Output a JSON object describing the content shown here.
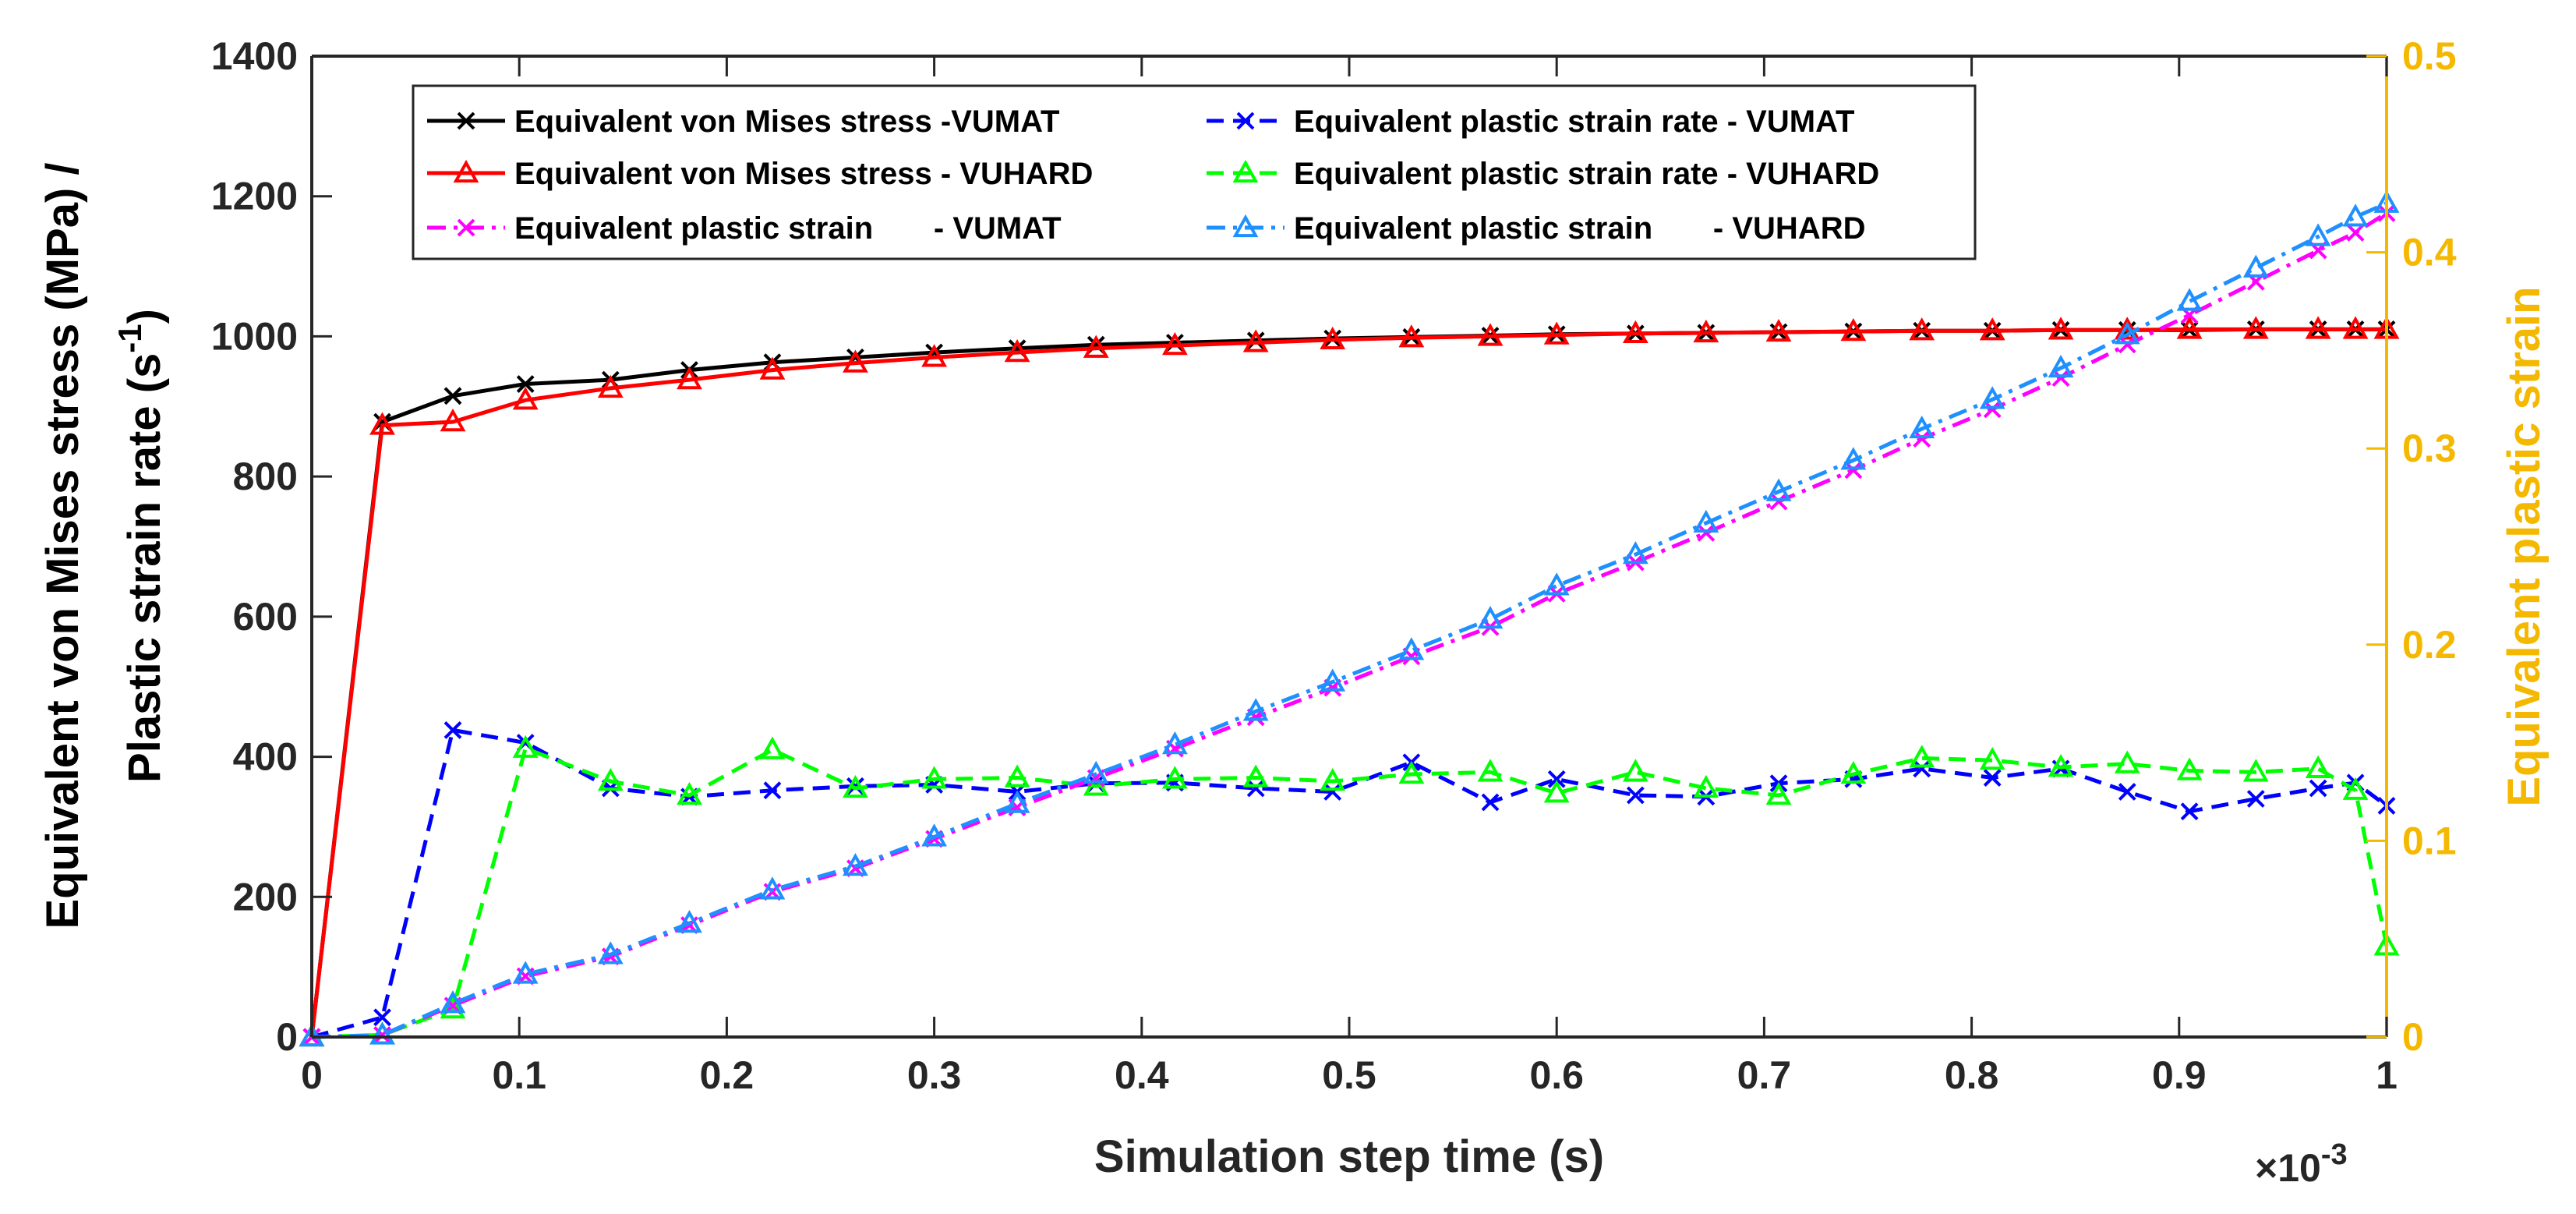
{
  "chart_data": {
    "type": "line",
    "xlabel": "Simulation step time (s)",
    "x_multiplier": "×10",
    "x_multiplier_exp": "-3",
    "ylabel_left_line1": "Equivalent von Mises stress (MPa) /",
    "ylabel_left_line2": "Plastic strain rate (s",
    "ylabel_left_exp": "-1",
    "ylabel_left_close": ")",
    "ylabel_right": "Equivalent plastic strain",
    "xlim": [
      0,
      1
    ],
    "ylim_left": [
      0,
      1400
    ],
    "ylim_right": [
      0,
      0.5
    ],
    "x_ticks": [
      "0",
      "0.1",
      "0.2",
      "0.3",
      "0.4",
      "0.5",
      "0.6",
      "0.7",
      "0.8",
      "0.9",
      "1"
    ],
    "y_left_ticks": [
      "0",
      "200",
      "400",
      "600",
      "800",
      "1000",
      "1200",
      "1400"
    ],
    "y_right_ticks": [
      "0",
      "0.1",
      "0.2",
      "0.3",
      "0.4",
      "0.5"
    ],
    "grid": false,
    "legend_placement": "top-center",
    "colors": {
      "right_axis": "#F5B800"
    },
    "series": [
      {
        "name": "Equivalent von Mises stress -VUMAT",
        "axis": "left",
        "color": "#000000",
        "dash": "solid",
        "marker": "x",
        "x": [
          0,
          0.034,
          0.068,
          0.103,
          0.144,
          0.182,
          0.222,
          0.262,
          0.3,
          0.34,
          0.378,
          0.416,
          0.455,
          0.492,
          0.53,
          0.568,
          0.6,
          0.638,
          0.672,
          0.707,
          0.743,
          0.776,
          0.81,
          0.843,
          0.875,
          0.905,
          0.937,
          0.967,
          0.985,
          1.0
        ],
        "y": [
          0,
          878,
          915,
          932,
          938,
          952,
          963,
          970,
          977,
          983,
          988,
          991,
          994,
          997,
          999,
          1001,
          1003,
          1004,
          1005,
          1006,
          1007,
          1008,
          1008,
          1009,
          1009,
          1009,
          1010,
          1010,
          1010,
          1010
        ]
      },
      {
        "name": "Equivalent von Mises stress - VUHARD",
        "axis": "left",
        "color": "#FF0000",
        "dash": "solid",
        "marker": "triangle",
        "x": [
          0,
          0.034,
          0.068,
          0.103,
          0.144,
          0.182,
          0.222,
          0.262,
          0.3,
          0.34,
          0.378,
          0.416,
          0.455,
          0.492,
          0.53,
          0.568,
          0.6,
          0.638,
          0.672,
          0.707,
          0.743,
          0.776,
          0.81,
          0.843,
          0.875,
          0.905,
          0.937,
          0.967,
          0.985,
          1.0
        ],
        "y": [
          0,
          873,
          878,
          909,
          926,
          938,
          952,
          962,
          970,
          977,
          983,
          987,
          991,
          995,
          998,
          1000,
          1002,
          1004,
          1005,
          1006,
          1007,
          1008,
          1008,
          1009,
          1009,
          1010,
          1010,
          1010,
          1010,
          1010
        ]
      },
      {
        "name": "Equivalent plastic strain rate - VUMAT",
        "axis": "left",
        "color": "#0000FF",
        "dash": "dashed",
        "marker": "x",
        "x": [
          0,
          0.034,
          0.068,
          0.103,
          0.144,
          0.182,
          0.222,
          0.262,
          0.3,
          0.34,
          0.378,
          0.416,
          0.455,
          0.492,
          0.53,
          0.568,
          0.6,
          0.638,
          0.672,
          0.707,
          0.743,
          0.776,
          0.81,
          0.843,
          0.875,
          0.905,
          0.937,
          0.967,
          0.985,
          1.0
        ],
        "y": [
          0,
          28,
          438,
          420,
          355,
          343,
          352,
          358,
          360,
          350,
          362,
          363,
          355,
          350,
          392,
          335,
          368,
          345,
          343,
          362,
          368,
          383,
          370,
          383,
          350,
          322,
          340,
          355,
          363,
          330
        ]
      },
      {
        "name": "Equivalent plastic strain rate - VUHARD",
        "axis": "left",
        "color": "#00FF00",
        "dash": "dashed",
        "marker": "triangle",
        "x": [
          0,
          0.034,
          0.068,
          0.103,
          0.144,
          0.182,
          0.222,
          0.262,
          0.3,
          0.34,
          0.378,
          0.416,
          0.455,
          0.492,
          0.53,
          0.568,
          0.6,
          0.638,
          0.672,
          0.707,
          0.743,
          0.776,
          0.81,
          0.843,
          0.875,
          0.905,
          0.937,
          0.967,
          0.985,
          1.0
        ],
        "y": [
          0,
          3,
          40,
          412,
          365,
          345,
          410,
          355,
          368,
          370,
          358,
          368,
          370,
          365,
          375,
          378,
          348,
          378,
          355,
          345,
          375,
          398,
          395,
          385,
          390,
          380,
          378,
          383,
          352,
          130
        ]
      },
      {
        "name": "Equivalent plastic strain       - VUMAT",
        "axis": "right",
        "color": "#FF00FF",
        "dash": "dashdot",
        "marker": "x",
        "x": [
          0,
          0.034,
          0.068,
          0.103,
          0.144,
          0.182,
          0.222,
          0.262,
          0.3,
          0.34,
          0.378,
          0.416,
          0.455,
          0.492,
          0.53,
          0.568,
          0.6,
          0.638,
          0.672,
          0.707,
          0.743,
          0.776,
          0.81,
          0.843,
          0.875,
          0.905,
          0.937,
          0.967,
          0.985,
          1.0
        ],
        "y": [
          0,
          0.001,
          0.016,
          0.031,
          0.041,
          0.057,
          0.074,
          0.086,
          0.101,
          0.117,
          0.132,
          0.147,
          0.163,
          0.178,
          0.194,
          0.209,
          0.226,
          0.242,
          0.257,
          0.273,
          0.289,
          0.305,
          0.32,
          0.336,
          0.353,
          0.368,
          0.385,
          0.401,
          0.41,
          0.42
        ]
      },
      {
        "name": "Equivalent plastic strain       - VUHARD",
        "axis": "right",
        "color": "#1E90FF",
        "dash": "dashdot",
        "marker": "triangle",
        "x": [
          0,
          0.034,
          0.068,
          0.103,
          0.144,
          0.182,
          0.222,
          0.262,
          0.3,
          0.34,
          0.378,
          0.416,
          0.455,
          0.492,
          0.53,
          0.568,
          0.6,
          0.638,
          0.672,
          0.707,
          0.743,
          0.776,
          0.81,
          0.843,
          0.875,
          0.905,
          0.937,
          0.967,
          0.985,
          1.0
        ],
        "y": [
          0,
          0.001,
          0.017,
          0.032,
          0.042,
          0.058,
          0.075,
          0.087,
          0.102,
          0.119,
          0.134,
          0.149,
          0.166,
          0.181,
          0.197,
          0.213,
          0.23,
          0.246,
          0.262,
          0.278,
          0.294,
          0.31,
          0.325,
          0.341,
          0.358,
          0.375,
          0.392,
          0.408,
          0.418,
          0.425
        ]
      }
    ]
  }
}
